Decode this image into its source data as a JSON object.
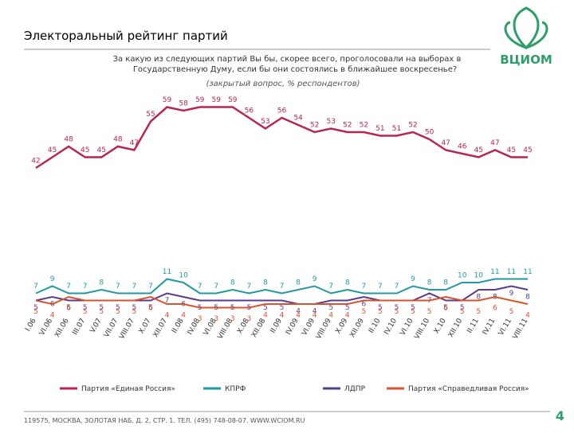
{
  "chart_data": {
    "type": "line",
    "title": "Электоральный рейтинг партий",
    "subtitle": [
      "За какую из следующих партий Вы бы, скорее всего, проголосовали на выборах в",
      "Государственную Думу, если бы они состоялись в ближайшее воскресенье?"
    ],
    "note": "(закрытый вопрос, % респондентов)",
    "logo": "ВЦИОМ",
    "footer": "119575, МОСКВА, ЗОЛОТАЯ НАБ. Д. 2, СТР. 1. ТЕЛ. (495) 748-08-07. WWW.WCIOM.RU",
    "page_number": "4",
    "categories": [
      "I.06",
      "VI.06",
      "XII.06",
      "III.07",
      "V.07",
      "VII.07",
      "VIII.07",
      "X.07",
      "XII.07",
      "II.08",
      "IV.08",
      "VI.08",
      "VIII.08",
      "X.08",
      "XII.08",
      "II.09",
      "IV.09",
      "VI.09",
      "VIII.09",
      "X.09",
      "XII.09",
      "II.10",
      "IV.10",
      "VI.10",
      "VIII.10",
      "X.10",
      "XII.10",
      "II.11",
      "IV.11",
      "VI.11",
      "VIII.11"
    ],
    "ylim": [
      0,
      60
    ],
    "series": [
      {
        "name": "Партия «Единая Россия»",
        "color": "#b8264f",
        "values": [
          42,
          45,
          48,
          45,
          45,
          48,
          47,
          55,
          59,
          58,
          59,
          59,
          59,
          56,
          53,
          56,
          54,
          52,
          53,
          52,
          52,
          51,
          51,
          52,
          50,
          47,
          46,
          45,
          47,
          45,
          45
        ]
      },
      {
        "name": "КПРФ",
        "color": "#1f9aa0",
        "values": [
          7,
          9,
          7,
          7,
          8,
          7,
          7,
          7,
          11,
          10,
          7,
          7,
          8,
          7,
          8,
          7,
          8,
          9,
          7,
          8,
          7,
          7,
          7,
          9,
          8,
          8,
          10,
          10,
          11,
          11,
          11
        ]
      },
      {
        "name": "ЛДПР",
        "color": "#5a3b8e",
        "values": [
          5,
          6,
          5,
          5,
          5,
          5,
          5,
          5,
          7,
          6,
          5,
          5,
          5,
          5,
          5,
          5,
          4,
          4,
          5,
          5,
          6,
          5,
          5,
          5,
          7,
          5,
          5,
          8,
          8,
          9,
          8
        ]
      },
      {
        "name": "Партия «Справедливая Россия»",
        "color": "#d9542b",
        "values": [
          5,
          4,
          6,
          5,
          5,
          5,
          5,
          6,
          4,
          4,
          3,
          3,
          3,
          3,
          4,
          4,
          4,
          4,
          4,
          4,
          5,
          5,
          5,
          5,
          5,
          6,
          5,
          5,
          6,
          5,
          4
        ]
      }
    ]
  }
}
